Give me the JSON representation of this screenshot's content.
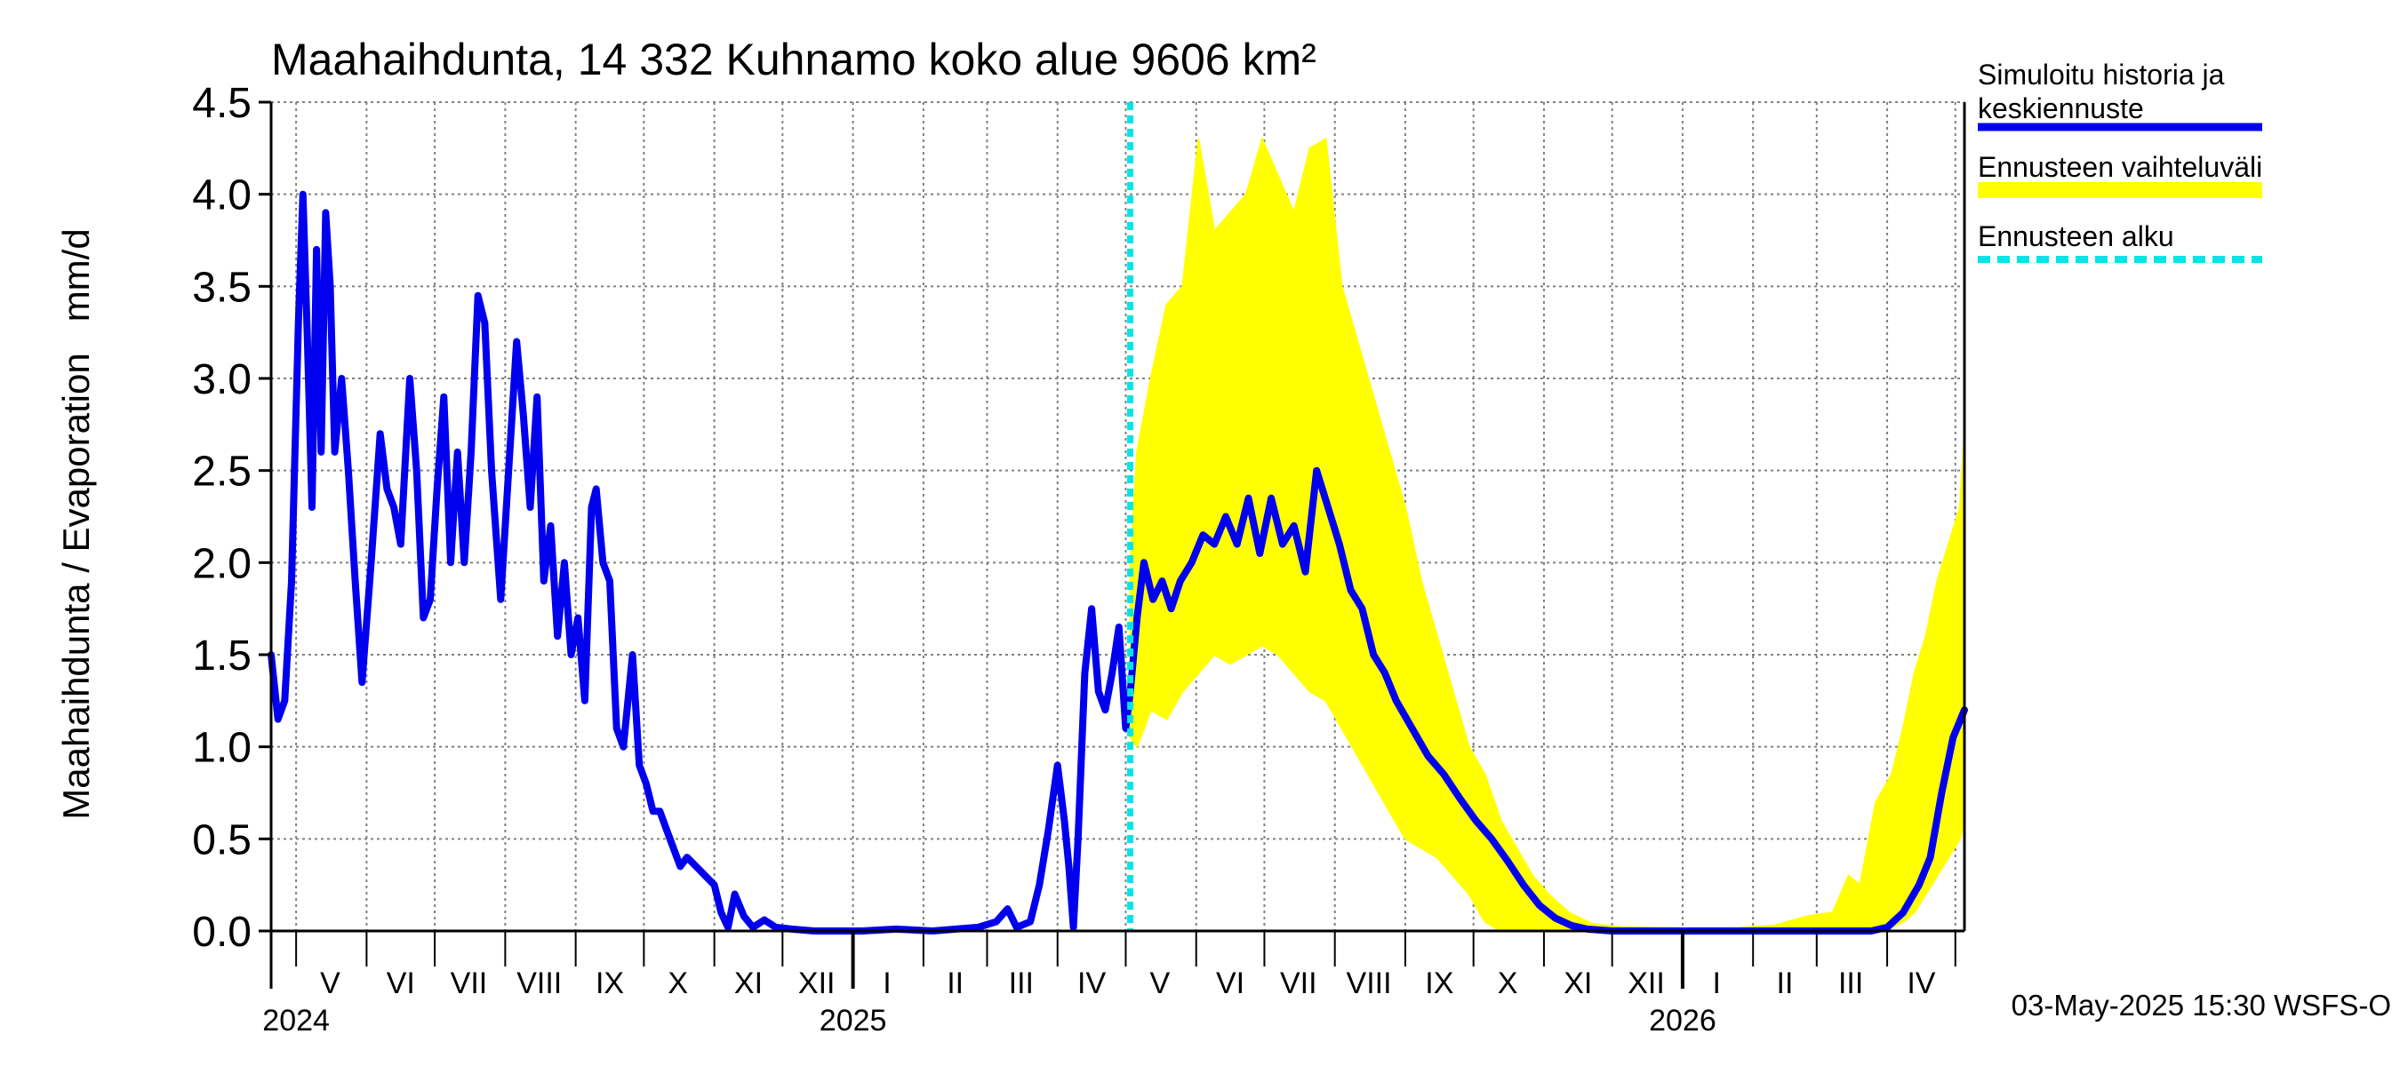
{
  "chart_data": {
    "type": "line",
    "title": "Maahaihdunta, 14 332 Kuhnamo koko alue 9606 km²",
    "ylabel": "Maahaihdunta / Evaporation   mm/d",
    "ylim": [
      0,
      4.5
    ],
    "yticks": [
      "0.0",
      "0.5",
      "1.0",
      "1.5",
      "2.0",
      "2.5",
      "3.0",
      "3.5",
      "4.0",
      "4.5"
    ],
    "xlim": [
      "2024-04-20",
      "2026-05-05"
    ],
    "month_labels": [
      {
        "label": "V",
        "date": "2024-05-16"
      },
      {
        "label": "VI",
        "date": "2024-06-16"
      },
      {
        "label": "VII",
        "date": "2024-07-16"
      },
      {
        "label": "VIII",
        "date": "2024-08-16"
      },
      {
        "label": "IX",
        "date": "2024-09-16"
      },
      {
        "label": "X",
        "date": "2024-10-16"
      },
      {
        "label": "XI",
        "date": "2024-11-16"
      },
      {
        "label": "XII",
        "date": "2024-12-16"
      },
      {
        "label": "I",
        "date": "2025-01-16"
      },
      {
        "label": "II",
        "date": "2025-02-15"
      },
      {
        "label": "III",
        "date": "2025-03-16"
      },
      {
        "label": "IV",
        "date": "2025-04-16"
      },
      {
        "label": "V",
        "date": "2025-05-16"
      },
      {
        "label": "VI",
        "date": "2025-06-16"
      },
      {
        "label": "VII",
        "date": "2025-07-16"
      },
      {
        "label": "VIII",
        "date": "2025-08-16"
      },
      {
        "label": "IX",
        "date": "2025-09-16"
      },
      {
        "label": "X",
        "date": "2025-10-16"
      },
      {
        "label": "XI",
        "date": "2025-11-16"
      },
      {
        "label": "XII",
        "date": "2025-12-16"
      },
      {
        "label": "I",
        "date": "2026-01-16"
      },
      {
        "label": "II",
        "date": "2026-02-15"
      },
      {
        "label": "III",
        "date": "2026-03-16"
      },
      {
        "label": "IV",
        "date": "2026-04-16"
      }
    ],
    "year_labels": [
      {
        "label": "2024",
        "date": "2024-05-01"
      },
      {
        "label": "2025",
        "date": "2025-01-01"
      },
      {
        "label": "2026",
        "date": "2026-01-01"
      }
    ],
    "forecast_start": "2025-05-03",
    "series": [
      {
        "name": "Simuloitu historia ja keskiennuste",
        "color": "#0000ee",
        "points": [
          [
            "2024-04-20",
            1.5
          ],
          [
            "2024-04-23",
            1.15
          ],
          [
            "2024-04-26",
            1.25
          ],
          [
            "2024-04-29",
            1.9
          ],
          [
            "2024-05-02",
            3.3
          ],
          [
            "2024-05-04",
            4.0
          ],
          [
            "2024-05-06",
            3.2
          ],
          [
            "2024-05-08",
            2.3
          ],
          [
            "2024-05-10",
            3.7
          ],
          [
            "2024-05-12",
            2.6
          ],
          [
            "2024-05-14",
            3.9
          ],
          [
            "2024-05-16",
            3.5
          ],
          [
            "2024-05-18",
            2.6
          ],
          [
            "2024-05-21",
            3.0
          ],
          [
            "2024-05-24",
            2.5
          ],
          [
            "2024-05-27",
            1.9
          ],
          [
            "2024-05-30",
            1.35
          ],
          [
            "2024-06-03",
            2.0
          ],
          [
            "2024-06-07",
            2.7
          ],
          [
            "2024-06-10",
            2.4
          ],
          [
            "2024-06-13",
            2.3
          ],
          [
            "2024-06-16",
            2.1
          ],
          [
            "2024-06-20",
            3.0
          ],
          [
            "2024-06-23",
            2.5
          ],
          [
            "2024-06-26",
            1.7
          ],
          [
            "2024-06-29",
            1.8
          ],
          [
            "2024-07-02",
            2.4
          ],
          [
            "2024-07-05",
            2.9
          ],
          [
            "2024-07-08",
            2.0
          ],
          [
            "2024-07-11",
            2.6
          ],
          [
            "2024-07-14",
            2.0
          ],
          [
            "2024-07-17",
            2.6
          ],
          [
            "2024-07-20",
            3.45
          ],
          [
            "2024-07-23",
            3.3
          ],
          [
            "2024-07-26",
            2.5
          ],
          [
            "2024-07-30",
            1.8
          ],
          [
            "2024-08-03",
            2.6
          ],
          [
            "2024-08-06",
            3.2
          ],
          [
            "2024-08-09",
            2.8
          ],
          [
            "2024-08-12",
            2.3
          ],
          [
            "2024-08-15",
            2.9
          ],
          [
            "2024-08-18",
            1.9
          ],
          [
            "2024-08-21",
            2.2
          ],
          [
            "2024-08-24",
            1.6
          ],
          [
            "2024-08-27",
            2.0
          ],
          [
            "2024-08-30",
            1.5
          ],
          [
            "2024-09-02",
            1.7
          ],
          [
            "2024-09-05",
            1.25
          ],
          [
            "2024-09-08",
            2.3
          ],
          [
            "2024-09-10",
            2.4
          ],
          [
            "2024-09-13",
            2.0
          ],
          [
            "2024-09-16",
            1.9
          ],
          [
            "2024-09-19",
            1.1
          ],
          [
            "2024-09-22",
            1.0
          ],
          [
            "2024-09-26",
            1.5
          ],
          [
            "2024-09-29",
            0.9
          ],
          [
            "2024-10-02",
            0.8
          ],
          [
            "2024-10-05",
            0.65
          ],
          [
            "2024-10-08",
            0.65
          ],
          [
            "2024-10-11",
            0.55
          ],
          [
            "2024-10-14",
            0.45
          ],
          [
            "2024-10-17",
            0.35
          ],
          [
            "2024-10-20",
            0.4
          ],
          [
            "2024-10-24",
            0.35
          ],
          [
            "2024-10-28",
            0.3
          ],
          [
            "2024-11-01",
            0.25
          ],
          [
            "2024-11-04",
            0.1
          ],
          [
            "2024-11-07",
            0.02
          ],
          [
            "2024-11-10",
            0.2
          ],
          [
            "2024-11-14",
            0.08
          ],
          [
            "2024-11-18",
            0.02
          ],
          [
            "2024-11-23",
            0.06
          ],
          [
            "2024-11-28",
            0.02
          ],
          [
            "2024-12-05",
            0.01
          ],
          [
            "2024-12-15",
            0.0
          ],
          [
            "2025-01-05",
            0.0
          ],
          [
            "2025-01-20",
            0.01
          ],
          [
            "2025-02-05",
            0.0
          ],
          [
            "2025-02-25",
            0.02
          ],
          [
            "2025-03-05",
            0.05
          ],
          [
            "2025-03-10",
            0.12
          ],
          [
            "2025-03-14",
            0.02
          ],
          [
            "2025-03-20",
            0.05
          ],
          [
            "2025-03-24",
            0.25
          ],
          [
            "2025-03-28",
            0.55
          ],
          [
            "2025-04-01",
            0.9
          ],
          [
            "2025-04-04",
            0.6
          ],
          [
            "2025-04-06",
            0.35
          ],
          [
            "2025-04-08",
            0.02
          ],
          [
            "2025-04-10",
            0.5
          ],
          [
            "2025-04-13",
            1.4
          ],
          [
            "2025-04-16",
            1.75
          ],
          [
            "2025-04-19",
            1.3
          ],
          [
            "2025-04-22",
            1.2
          ],
          [
            "2025-04-25",
            1.4
          ],
          [
            "2025-04-28",
            1.65
          ],
          [
            "2025-05-01",
            1.1
          ],
          [
            "2025-05-03",
            1.3
          ],
          [
            "2025-05-06",
            1.7
          ],
          [
            "2025-05-09",
            2.0
          ],
          [
            "2025-05-13",
            1.8
          ],
          [
            "2025-05-17",
            1.9
          ],
          [
            "2025-05-21",
            1.75
          ],
          [
            "2025-05-25",
            1.9
          ],
          [
            "2025-05-30",
            2.0
          ],
          [
            "2025-06-04",
            2.15
          ],
          [
            "2025-06-09",
            2.1
          ],
          [
            "2025-06-14",
            2.25
          ],
          [
            "2025-06-19",
            2.1
          ],
          [
            "2025-06-24",
            2.35
          ],
          [
            "2025-06-29",
            2.05
          ],
          [
            "2025-07-04",
            2.35
          ],
          [
            "2025-07-09",
            2.1
          ],
          [
            "2025-07-14",
            2.2
          ],
          [
            "2025-07-19",
            1.95
          ],
          [
            "2025-07-24",
            2.5
          ],
          [
            "2025-07-29",
            2.3
          ],
          [
            "2025-08-03",
            2.1
          ],
          [
            "2025-08-08",
            1.85
          ],
          [
            "2025-08-13",
            1.75
          ],
          [
            "2025-08-18",
            1.5
          ],
          [
            "2025-08-23",
            1.4
          ],
          [
            "2025-08-28",
            1.25
          ],
          [
            "2025-09-04",
            1.1
          ],
          [
            "2025-09-11",
            0.95
          ],
          [
            "2025-09-18",
            0.85
          ],
          [
            "2025-09-25",
            0.72
          ],
          [
            "2025-10-02",
            0.6
          ],
          [
            "2025-10-09",
            0.5
          ],
          [
            "2025-10-16",
            0.38
          ],
          [
            "2025-10-23",
            0.25
          ],
          [
            "2025-10-30",
            0.14
          ],
          [
            "2025-11-06",
            0.07
          ],
          [
            "2025-11-13",
            0.03
          ],
          [
            "2025-11-20",
            0.01
          ],
          [
            "2025-12-01",
            0.0
          ],
          [
            "2026-01-01",
            0.0
          ],
          [
            "2026-02-01",
            0.0
          ],
          [
            "2026-03-01",
            0.0
          ],
          [
            "2026-03-25",
            0.0
          ],
          [
            "2026-04-01",
            0.02
          ],
          [
            "2026-04-08",
            0.1
          ],
          [
            "2026-04-15",
            0.25
          ],
          [
            "2026-04-20",
            0.4
          ],
          [
            "2026-04-25",
            0.75
          ],
          [
            "2026-04-30",
            1.05
          ],
          [
            "2026-05-05",
            1.2
          ]
        ]
      },
      {
        "name": "Ennusteen vaihteluväli",
        "color": "#ffff00",
        "band": [
          [
            "2025-05-03",
            1.05,
            2.0
          ],
          [
            "2025-05-06",
            1.0,
            2.6
          ],
          [
            "2025-05-12",
            1.2,
            3.0
          ],
          [
            "2025-05-19",
            1.15,
            3.4
          ],
          [
            "2025-05-26",
            1.3,
            3.5
          ],
          [
            "2025-06-02",
            1.4,
            4.3
          ],
          [
            "2025-06-09",
            1.5,
            3.8
          ],
          [
            "2025-06-16",
            1.45,
            3.9
          ],
          [
            "2025-06-23",
            1.5,
            4.0
          ],
          [
            "2025-06-30",
            1.55,
            4.3
          ],
          [
            "2025-07-07",
            1.5,
            4.1
          ],
          [
            "2025-07-14",
            1.4,
            3.9
          ],
          [
            "2025-07-21",
            1.3,
            4.25
          ],
          [
            "2025-07-28",
            1.25,
            4.3
          ],
          [
            "2025-08-04",
            1.1,
            3.5
          ],
          [
            "2025-08-11",
            0.95,
            3.2
          ],
          [
            "2025-08-18",
            0.8,
            2.9
          ],
          [
            "2025-08-25",
            0.65,
            2.6
          ],
          [
            "2025-09-01",
            0.5,
            2.3
          ],
          [
            "2025-09-08",
            0.45,
            1.9
          ],
          [
            "2025-09-15",
            0.4,
            1.6
          ],
          [
            "2025-09-22",
            0.3,
            1.3
          ],
          [
            "2025-09-29",
            0.2,
            1.0
          ],
          [
            "2025-10-06",
            0.05,
            0.85
          ],
          [
            "2025-10-13",
            0.0,
            0.6
          ],
          [
            "2025-10-20",
            0.0,
            0.45
          ],
          [
            "2025-10-27",
            0.0,
            0.3
          ],
          [
            "2025-11-03",
            0.0,
            0.2
          ],
          [
            "2025-11-12",
            0.0,
            0.1
          ],
          [
            "2025-11-22",
            0.0,
            0.04
          ],
          [
            "2025-12-05",
            0.0,
            0.02
          ],
          [
            "2026-01-20",
            0.0,
            0.01
          ],
          [
            "2026-02-10",
            0.0,
            0.03
          ],
          [
            "2026-02-25",
            0.0,
            0.08
          ],
          [
            "2026-03-08",
            0.0,
            0.1
          ],
          [
            "2026-03-15",
            0.0,
            0.3
          ],
          [
            "2026-03-20",
            0.0,
            0.25
          ],
          [
            "2026-03-27",
            0.0,
            0.7
          ],
          [
            "2026-04-03",
            0.02,
            0.85
          ],
          [
            "2026-04-08",
            0.05,
            1.1
          ],
          [
            "2026-04-13",
            0.1,
            1.4
          ],
          [
            "2026-04-18",
            0.2,
            1.6
          ],
          [
            "2026-04-23",
            0.3,
            1.9
          ],
          [
            "2026-04-28",
            0.4,
            2.1
          ],
          [
            "2026-05-03",
            0.5,
            2.3
          ],
          [
            "2026-05-05",
            0.6,
            2.7
          ]
        ]
      },
      {
        "name": "Ennusteen alku",
        "color": "#00e5e5"
      }
    ],
    "legend": [
      {
        "lines": [
          "Simuloitu historia ja",
          "keskiennuste"
        ],
        "color": "#0000ee",
        "style": "solid"
      },
      {
        "lines": [
          "Ennusteen vaihteluväli"
        ],
        "color": "#ffff00",
        "style": "band"
      },
      {
        "lines": [
          "Ennusteen alku"
        ],
        "color": "#00e5e5",
        "style": "dashed"
      }
    ],
    "legend_position": "right",
    "grid": true,
    "footer": "03-May-2025 15:30 WSFS-O"
  }
}
